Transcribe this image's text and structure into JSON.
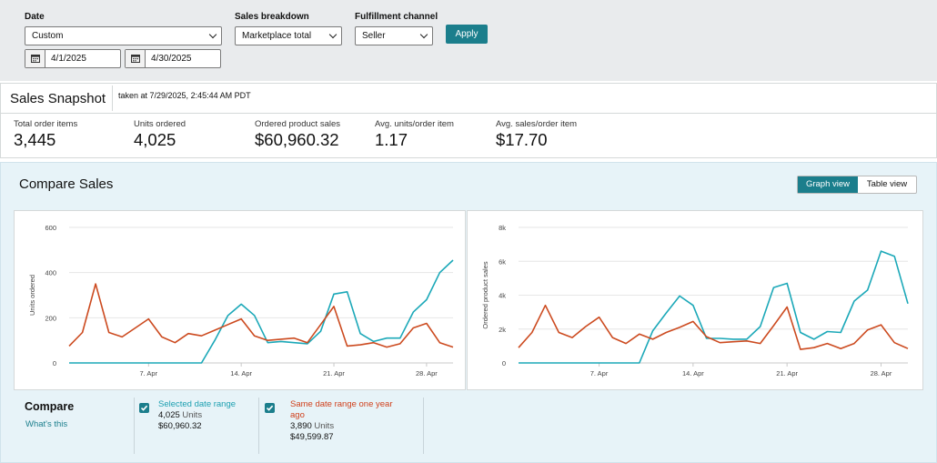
{
  "filters": {
    "date_label": "Date",
    "date_value": "Custom",
    "sales_breakdown_label": "Sales breakdown",
    "sales_breakdown_value": "Marketplace total",
    "fulfillment_label": "Fulfillment channel",
    "fulfillment_value": "Seller",
    "start_date": "4/1/2025",
    "end_date": "4/30/2025",
    "apply_label": "Apply"
  },
  "snapshot": {
    "title": "Sales Snapshot",
    "taken": "taken at 7/29/2025, 2:45:44 AM PDT",
    "metrics": [
      {
        "label": "Total order items",
        "value": "3,445"
      },
      {
        "label": "Units ordered",
        "value": "4,025"
      },
      {
        "label": "Ordered product sales",
        "value": "$60,960.32"
      },
      {
        "label": "Avg. units/order item",
        "value": "1.17"
      },
      {
        "label": "Avg. sales/order item",
        "value": "$17.70"
      }
    ]
  },
  "compare": {
    "title": "Compare Sales",
    "graph_view_label": "Graph view",
    "table_view_label": "Table view",
    "compare_label": "Compare",
    "whats_this": "What's this",
    "selected": {
      "title": "Selected date range",
      "units_value": "4,025",
      "units_word": "Units",
      "sales": "$60,960.32"
    },
    "last_year": {
      "title_line1": "Same date range one year",
      "title_line2": "ago",
      "units_value": "3,890",
      "units_word": "Units",
      "sales": "$49,599.87"
    }
  },
  "colors": {
    "current": "#1ba8b8",
    "last_year": "#cc4a1f",
    "accent": "#1b7e8c"
  },
  "chart_data": [
    {
      "type": "line",
      "ylabel": "Units ordered",
      "ylim": [
        0,
        600
      ],
      "yticks": [
        "0",
        "200",
        "400",
        "600"
      ],
      "xticks": [
        {
          "day": 7,
          "label": "7. Apr"
        },
        {
          "day": 14,
          "label": "14. Apr"
        },
        {
          "day": 21,
          "label": "21. Apr"
        },
        {
          "day": 28,
          "label": "28. Apr"
        }
      ],
      "x": [
        1,
        2,
        3,
        4,
        5,
        6,
        7,
        8,
        9,
        10,
        11,
        12,
        13,
        14,
        15,
        16,
        17,
        18,
        19,
        20,
        21,
        22,
        23,
        24,
        25,
        26,
        27,
        28,
        29,
        30
      ],
      "series": [
        {
          "name": "Selected date range",
          "color": "#1ba8b8",
          "values": [
            0,
            0,
            0,
            0,
            0,
            0,
            0,
            0,
            0,
            0,
            0,
            100,
            210,
            260,
            210,
            90,
            95,
            90,
            85,
            140,
            305,
            315,
            130,
            95,
            110,
            110,
            225,
            280,
            400,
            455
          ]
        },
        {
          "name": "Same date range one year ago",
          "color": "#cc4a1f",
          "values": [
            75,
            135,
            350,
            135,
            115,
            155,
            195,
            115,
            90,
            130,
            120,
            145,
            170,
            195,
            120,
            100,
            105,
            110,
            90,
            170,
            250,
            75,
            80,
            90,
            70,
            85,
            155,
            175,
            90,
            70
          ]
        }
      ]
    },
    {
      "type": "line",
      "ylabel": "Ordered product sales",
      "ylim": [
        0,
        8000
      ],
      "yticks": [
        "0",
        "2k",
        "4k",
        "6k",
        "8k"
      ],
      "xticks": [
        {
          "day": 7,
          "label": "7. Apr"
        },
        {
          "day": 14,
          "label": "14. Apr"
        },
        {
          "day": 21,
          "label": "21. Apr"
        },
        {
          "day": 28,
          "label": "28. Apr"
        }
      ],
      "x": [
        1,
        2,
        3,
        4,
        5,
        6,
        7,
        8,
        9,
        10,
        11,
        12,
        13,
        14,
        15,
        16,
        17,
        18,
        19,
        20,
        21,
        22,
        23,
        24,
        25,
        26,
        27,
        28,
        29,
        30
      ],
      "series": [
        {
          "name": "Selected date range",
          "color": "#1ba8b8",
          "values": [
            0,
            0,
            0,
            0,
            0,
            0,
            0,
            0,
            0,
            0,
            1900,
            2950,
            3950,
            3400,
            1450,
            1450,
            1400,
            1400,
            2150,
            4450,
            4700,
            1800,
            1400,
            1850,
            1800,
            3650,
            4300,
            6600,
            6300,
            3500
          ]
        },
        {
          "name": "Same date range one year ago",
          "color": "#cc4a1f",
          "values": [
            900,
            1800,
            3400,
            1800,
            1500,
            2150,
            2700,
            1500,
            1150,
            1700,
            1400,
            1800,
            2100,
            2450,
            1550,
            1200,
            1250,
            1300,
            1150,
            2200,
            3300,
            800,
            900,
            1150,
            850,
            1150,
            1950,
            2250,
            1200,
            850
          ]
        }
      ]
    }
  ]
}
